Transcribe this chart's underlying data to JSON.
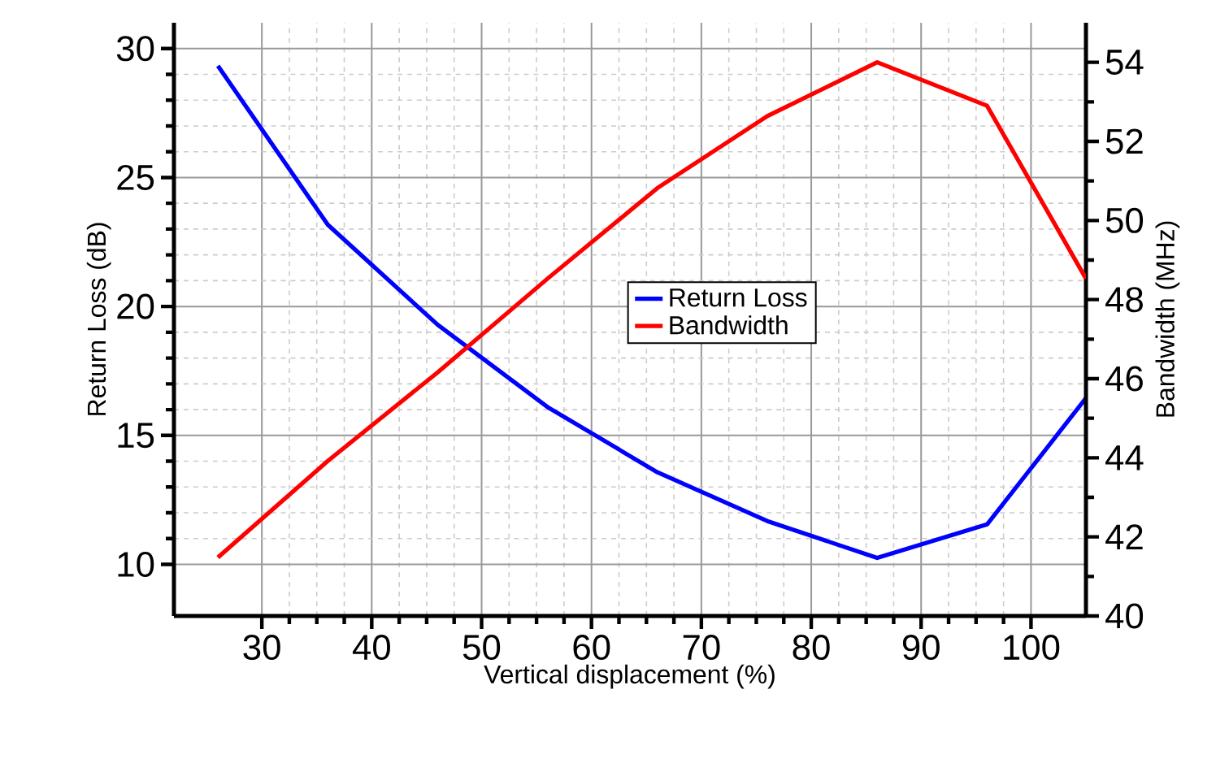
{
  "chart_data": {
    "type": "line",
    "xlabel": "Vertical displacement (%)",
    "ylabel": "Return Loss (dB)",
    "y2label": "Bandwidth (MHz)",
    "x": [
      26,
      36,
      46,
      56,
      66,
      76,
      86,
      96,
      105
    ],
    "series": [
      {
        "name": "Return Loss",
        "color": "#0000ff",
        "values": [
          29.33,
          23.17,
          19.29,
          16.1,
          13.57,
          11.68,
          10.25,
          11.55,
          16.45
        ]
      },
      {
        "name": "Bandwidth",
        "color": "#ff0000",
        "axis": "y2",
        "values": [
          41.48,
          43.92,
          46.16,
          48.53,
          50.82,
          52.64,
          54.0,
          52.9,
          48.53
        ]
      }
    ],
    "xlim": [
      22,
      105
    ],
    "xticks": [
      30,
      40,
      50,
      60,
      70,
      80,
      90,
      100
    ],
    "ylim": [
      8,
      31
    ],
    "yticks": [
      10,
      15,
      20,
      25,
      30
    ],
    "y2lim": [
      40,
      55
    ],
    "y2ticks": [
      40,
      42,
      44,
      46,
      48,
      50,
      52,
      54
    ],
    "grid": true,
    "legend": "right",
    "line_style": "solid"
  }
}
